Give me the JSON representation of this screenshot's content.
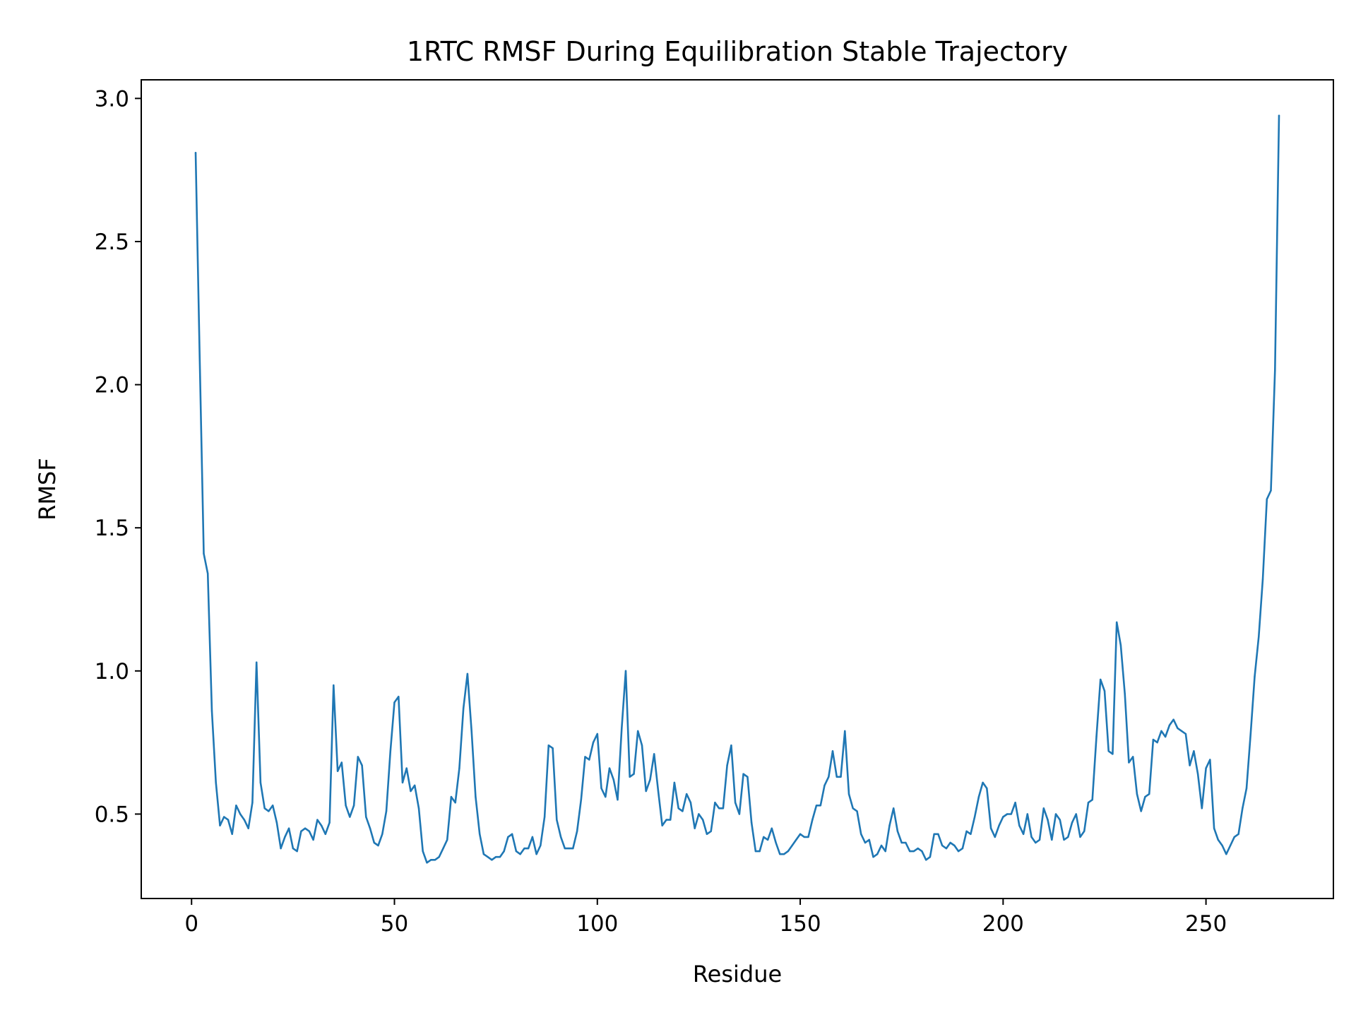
{
  "chart_data": {
    "type": "line",
    "title": "1RTC RMSF During Equilibration Stable Trajectory",
    "xlabel": "Residue",
    "ylabel": "RMSF",
    "xlim": [
      -12.4,
      281.4
    ],
    "ylim": [
      0.205,
      3.065
    ],
    "xticks": [
      0,
      50,
      100,
      150,
      200,
      250
    ],
    "yticks": [
      0.5,
      1.0,
      1.5,
      2.0,
      2.5,
      3.0
    ],
    "xtick_labels": [
      "0",
      "50",
      "100",
      "150",
      "200",
      "250"
    ],
    "ytick_labels": [
      "0.5",
      "1.0",
      "1.5",
      "2.0",
      "2.5",
      "3.0"
    ],
    "grid": false,
    "legend": "none",
    "colors": {
      "series": "#1f77b4",
      "axes": "#000000",
      "background": "#ffffff"
    },
    "series": [
      {
        "x_start": 1,
        "x_step": 1,
        "values": [
          2.81,
          2.1,
          1.41,
          1.34,
          0.86,
          0.61,
          0.46,
          0.49,
          0.48,
          0.43,
          0.53,
          0.5,
          0.48,
          0.45,
          0.54,
          1.03,
          0.61,
          0.52,
          0.51,
          0.53,
          0.47,
          0.38,
          0.42,
          0.45,
          0.38,
          0.37,
          0.44,
          0.45,
          0.44,
          0.41,
          0.48,
          0.46,
          0.43,
          0.47,
          0.95,
          0.65,
          0.68,
          0.53,
          0.49,
          0.53,
          0.7,
          0.67,
          0.49,
          0.45,
          0.4,
          0.39,
          0.43,
          0.51,
          0.72,
          0.89,
          0.91,
          0.61,
          0.66,
          0.58,
          0.6,
          0.52,
          0.37,
          0.33,
          0.34,
          0.34,
          0.35,
          0.38,
          0.41,
          0.56,
          0.54,
          0.66,
          0.87,
          0.99,
          0.79,
          0.56,
          0.43,
          0.36,
          0.35,
          0.34,
          0.35,
          0.35,
          0.37,
          0.42,
          0.43,
          0.37,
          0.36,
          0.38,
          0.38,
          0.42,
          0.36,
          0.39,
          0.49,
          0.74,
          0.73,
          0.48,
          0.42,
          0.38,
          0.38,
          0.38,
          0.44,
          0.55,
          0.7,
          0.69,
          0.75,
          0.78,
          0.59,
          0.56,
          0.66,
          0.62,
          0.55,
          0.8,
          1.0,
          0.63,
          0.64,
          0.79,
          0.74,
          0.58,
          0.62,
          0.71,
          0.58,
          0.46,
          0.48,
          0.48,
          0.61,
          0.52,
          0.51,
          0.57,
          0.54,
          0.45,
          0.5,
          0.48,
          0.43,
          0.44,
          0.54,
          0.52,
          0.52,
          0.67,
          0.74,
          0.54,
          0.5,
          0.64,
          0.63,
          0.47,
          0.37,
          0.37,
          0.42,
          0.41,
          0.45,
          0.4,
          0.36,
          0.36,
          0.37,
          0.39,
          0.41,
          0.43,
          0.42,
          0.42,
          0.48,
          0.53,
          0.53,
          0.6,
          0.63,
          0.72,
          0.63,
          0.63,
          0.79,
          0.57,
          0.52,
          0.51,
          0.43,
          0.4,
          0.41,
          0.35,
          0.36,
          0.39,
          0.37,
          0.46,
          0.52,
          0.44,
          0.4,
          0.4,
          0.37,
          0.37,
          0.38,
          0.37,
          0.34,
          0.35,
          0.43,
          0.43,
          0.39,
          0.38,
          0.4,
          0.39,
          0.37,
          0.38,
          0.44,
          0.43,
          0.49,
          0.56,
          0.61,
          0.59,
          0.45,
          0.42,
          0.46,
          0.49,
          0.5,
          0.5,
          0.54,
          0.46,
          0.43,
          0.5,
          0.42,
          0.4,
          0.41,
          0.52,
          0.48,
          0.41,
          0.5,
          0.48,
          0.41,
          0.42,
          0.47,
          0.5,
          0.42,
          0.44,
          0.54,
          0.55,
          0.77,
          0.97,
          0.93,
          0.72,
          0.71,
          1.17,
          1.09,
          0.92,
          0.68,
          0.7,
          0.57,
          0.51,
          0.56,
          0.57,
          0.76,
          0.75,
          0.79,
          0.77,
          0.81,
          0.83,
          0.8,
          0.79,
          0.78,
          0.67,
          0.72,
          0.64,
          0.52,
          0.66,
          0.69,
          0.45,
          0.41,
          0.39,
          0.36,
          0.39,
          0.42,
          0.43,
          0.52,
          0.59,
          0.78,
          0.98,
          1.12,
          1.32,
          1.6,
          1.63,
          2.05,
          2.94
        ]
      }
    ]
  }
}
